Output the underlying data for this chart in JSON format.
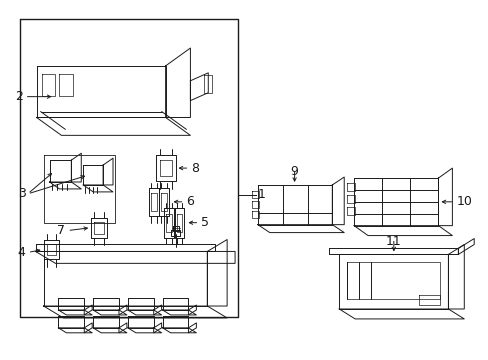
{
  "bg_color": "#ffffff",
  "line_color": "#1a1a1a",
  "lw": 0.7,
  "fig_width": 4.89,
  "fig_height": 3.6,
  "dpi": 100
}
